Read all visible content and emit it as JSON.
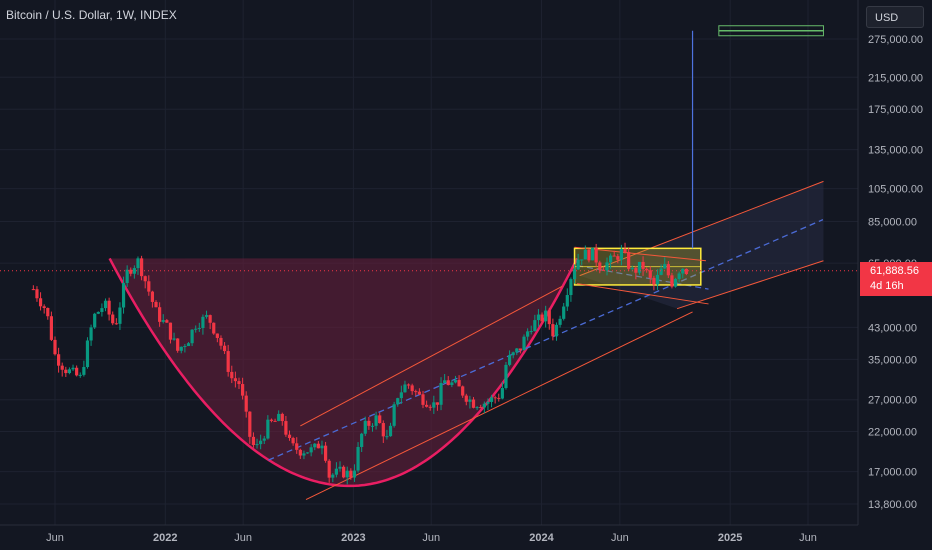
{
  "header": {
    "title": "Bitcoin / U.S. Dollar, 1W, INDEX"
  },
  "toolbar": {
    "currency_label": "USD"
  },
  "last_price": {
    "value": "61,888.56",
    "countdown": "4d 16h"
  },
  "colors": {
    "background": "#131722",
    "up_candle": "#089981",
    "down_candle": "#f23645",
    "cup_fill": "#6b1f3d",
    "cup_curve": "#e91e63",
    "channel_line": "#f5583a",
    "dashed_line": "#4b6bd6",
    "box_fill": "#b7a92a",
    "box_border": "#ffeb3b",
    "target_line": "#66bb6a",
    "vertical_line": "#4e73df"
  },
  "chart_data": {
    "type": "candlestick",
    "title": "Bitcoin / U.S. Dollar, 1W, INDEX",
    "y_scale": "log",
    "ylim": [
      12500,
      320000
    ],
    "y_ticks": [
      13800,
      17000,
      22000,
      27000,
      35000,
      43000,
      65000,
      85000,
      105000,
      135000,
      175000,
      215000,
      275000
    ],
    "y_tick_labels": [
      "13,800.00",
      "17,000.00",
      "22,000.00",
      "27,000.00",
      "35,000.00",
      "43,000.00",
      "65,000.00",
      "85,000.00",
      "105,000.00",
      "135,000.00",
      "175,000.00",
      "215,000.00",
      "275,000.00"
    ],
    "x_ticks": [
      "2021-06",
      "2022-01",
      "2022-06",
      "2023-01",
      "2023-06",
      "2024-01",
      "2024-06",
      "2025-01",
      "2025-06"
    ],
    "x_tick_labels": [
      "Jun",
      "2022",
      "Jun",
      "2023",
      "Jun",
      "2024",
      "Jun",
      "2025",
      "Jun"
    ],
    "last_close": 61888.56,
    "closes": [
      [
        "2021-04-20",
        55000
      ],
      [
        "2021-05-15",
        48000
      ],
      [
        "2021-06-01",
        36000
      ],
      [
        "2021-06-20",
        33000
      ],
      [
        "2021-07-20",
        31000
      ],
      [
        "2021-08-15",
        46000
      ],
      [
        "2021-09-05",
        50000
      ],
      [
        "2021-09-25",
        43000
      ],
      [
        "2021-10-20",
        62000
      ],
      [
        "2021-11-10",
        66000
      ],
      [
        "2021-11-25",
        57000
      ],
      [
        "2021-12-15",
        47000
      ],
      [
        "2022-01-05",
        43000
      ],
      [
        "2022-01-25",
        37000
      ],
      [
        "2022-02-15",
        40000
      ],
      [
        "2022-03-01",
        44000
      ],
      [
        "2022-03-25",
        46000
      ],
      [
        "2022-04-15",
        40000
      ],
      [
        "2022-05-10",
        31000
      ],
      [
        "2022-05-25",
        30000
      ],
      [
        "2022-06-15",
        21000
      ],
      [
        "2022-06-25",
        19500
      ],
      [
        "2022-07-20",
        23000
      ],
      [
        "2022-08-15",
        24000
      ],
      [
        "2022-09-01",
        20000
      ],
      [
        "2022-09-20",
        19500
      ],
      [
        "2022-10-15",
        19500
      ],
      [
        "2022-11-05",
        21000
      ],
      [
        "2022-11-12",
        16500
      ],
      [
        "2022-12-10",
        17000
      ],
      [
        "2022-12-30",
        16600
      ],
      [
        "2023-01-20",
        22500
      ],
      [
        "2023-02-15",
        24000
      ],
      [
        "2023-03-10",
        20500
      ],
      [
        "2023-03-25",
        27500
      ],
      [
        "2023-04-15",
        30000
      ],
      [
        "2023-05-10",
        27500
      ],
      [
        "2023-06-10",
        26000
      ],
      [
        "2023-06-25",
        30500
      ],
      [
        "2023-07-20",
        29500
      ],
      [
        "2023-08-20",
        26500
      ],
      [
        "2023-09-15",
        26500
      ],
      [
        "2023-10-15",
        28000
      ],
      [
        "2023-10-25",
        34500
      ],
      [
        "2023-11-20",
        37500
      ],
      [
        "2023-12-10",
        43500
      ],
      [
        "2024-01-10",
        46500
      ],
      [
        "2024-01-25",
        41000
      ],
      [
        "2024-02-15",
        52000
      ],
      [
        "2024-03-01",
        62000
      ],
      [
        "2024-03-15",
        68500
      ],
      [
        "2024-04-10",
        69000
      ],
      [
        "2024-04-25",
        63500
      ],
      [
        "2024-05-15",
        66000
      ],
      [
        "2024-06-05",
        70000
      ],
      [
        "2024-06-25",
        61500
      ],
      [
        "2024-07-15",
        64000
      ],
      [
        "2024-08-05",
        56000
      ],
      [
        "2024-08-25",
        64000
      ],
      [
        "2024-09-10",
        57500
      ],
      [
        "2024-09-28",
        64000
      ],
      [
        "2024-10-10",
        61888.56
      ]
    ],
    "drawings": {
      "cup": {
        "rim_left": [
          "2021-09-15",
          67000
        ],
        "bottom": [
          "2022-12-25",
          15500
        ],
        "rim_right": [
          "2024-03-10",
          67000
        ],
        "fill_top_price": 67000
      },
      "rising_channel": {
        "upper": [
          [
            "2022-09-20",
            22800
          ],
          [
            "2024-02-10",
            56000
          ]
        ],
        "lower": [
          [
            "2022-10-01",
            14200
          ],
          [
            "2024-10-20",
            47500
          ]
        ]
      },
      "consolidation_box": {
        "start": "2024-03-05",
        "end": "2024-11-05",
        "top": 71500,
        "bottom": 56500
      },
      "wedge": {
        "upper": [
          [
            "2024-03-05",
            72000
          ],
          [
            "2024-11-15",
            66000
          ]
        ],
        "lower": [
          [
            "2024-03-10",
            57000
          ],
          [
            "2024-11-20",
            50000
          ]
        ]
      },
      "dashed_trend": [
        [
          "2022-07-20",
          18300
        ],
        [
          "2025-06-30",
          86000
        ]
      ],
      "dashed_wedge": [
        [
          "2024-03-10",
          64000
        ],
        [
          "2024-11-20",
          55000
        ]
      ],
      "projection_channel": {
        "upper": [
          [
            "2024-03-15",
            60000
          ],
          [
            "2025-07-01",
            110000
          ]
        ],
        "lower": [
          [
            "2024-09-20",
            48500
          ],
          [
            "2025-07-01",
            66000
          ]
        ]
      },
      "target": {
        "x_start": "2024-12-10",
        "x_end": "2025-07-01",
        "price": 290000
      },
      "projection_vertical": {
        "date": "2024-10-20",
        "from": 71500,
        "to": 290000
      }
    }
  }
}
